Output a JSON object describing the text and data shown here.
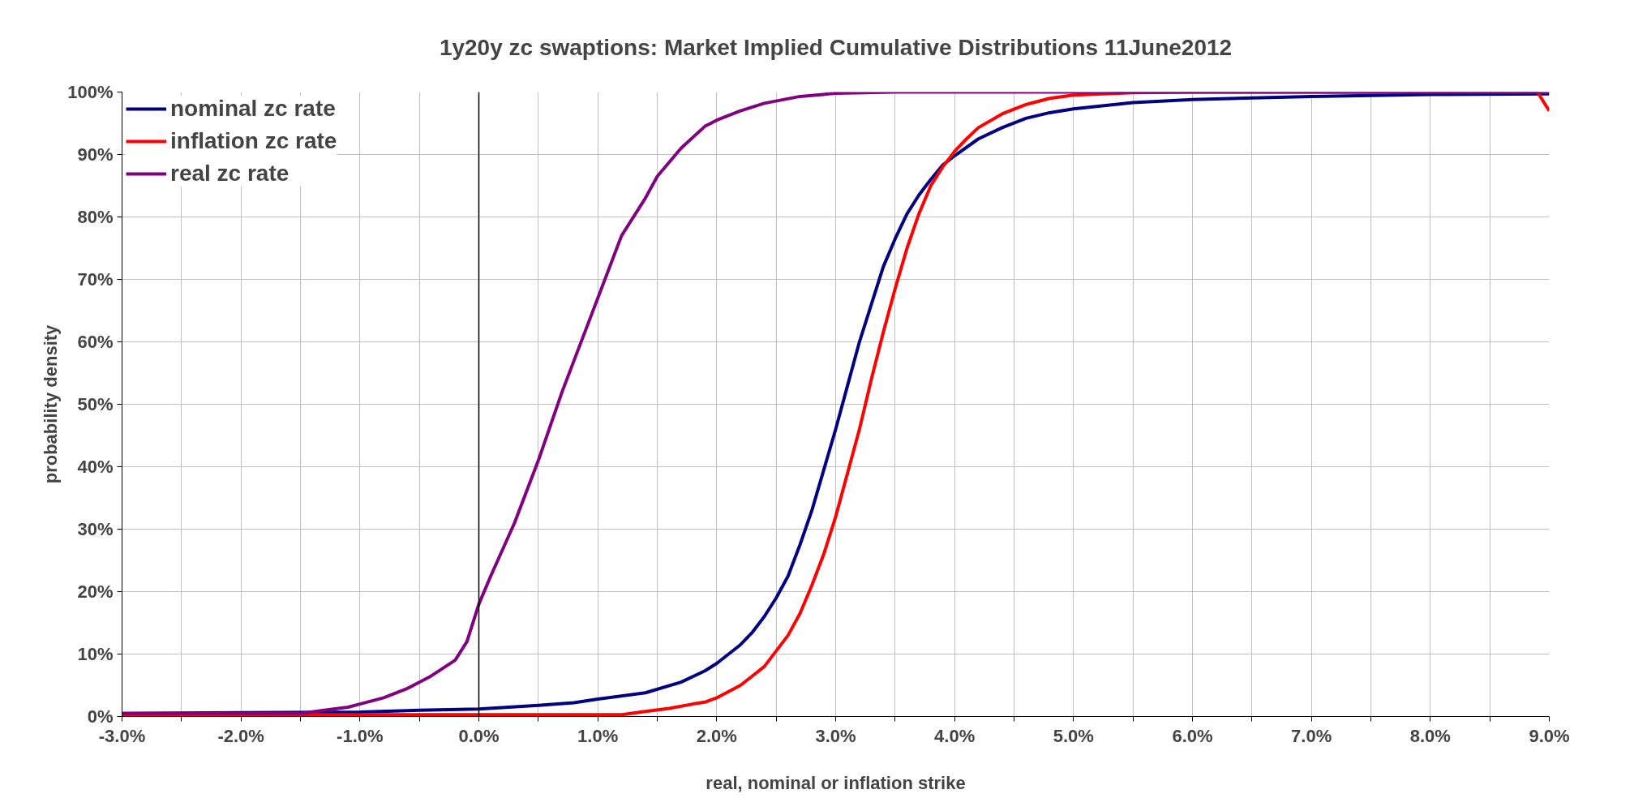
{
  "chart_data": {
    "type": "line",
    "title": "1y20y zc swaptions: Market Implied Cumulative Distributions 11June2012",
    "xlabel": "real, nominal or inflation strike",
    "ylabel": "probability density",
    "legend": "top left",
    "grid": true,
    "line_style": "solid",
    "xlim": [
      -3,
      9
    ],
    "ylim": [
      0,
      100
    ],
    "xticks": [
      {
        "value": -3,
        "label": "-3.0%"
      },
      {
        "value": -2.5,
        "label": null
      },
      {
        "value": -2,
        "label": "-2.0%"
      },
      {
        "value": -1.5,
        "label": null
      },
      {
        "value": -1,
        "label": "-1.0%"
      },
      {
        "value": -0.5,
        "label": null
      },
      {
        "value": 0,
        "label": "0.0%"
      },
      {
        "value": 0.5,
        "label": null
      },
      {
        "value": 1,
        "label": "1.0%"
      },
      {
        "value": 1.5,
        "label": null
      },
      {
        "value": 2,
        "label": "2.0%"
      },
      {
        "value": 2.5,
        "label": null
      },
      {
        "value": 3,
        "label": "3.0%"
      },
      {
        "value": 3.5,
        "label": null
      },
      {
        "value": 4,
        "label": "4.0%"
      },
      {
        "value": 4.5,
        "label": null
      },
      {
        "value": 5,
        "label": "5.0%"
      },
      {
        "value": 5.5,
        "label": null
      },
      {
        "value": 6,
        "label": "6.0%"
      },
      {
        "value": 6.5,
        "label": null
      },
      {
        "value": 7,
        "label": "7.0%"
      },
      {
        "value": 7.5,
        "label": null
      },
      {
        "value": 8,
        "label": "8.0%"
      },
      {
        "value": 8.5,
        "label": null
      },
      {
        "value": 9,
        "label": "9.0%"
      }
    ],
    "yticks": [
      {
        "value": 0,
        "label": "0%"
      },
      {
        "value": 10,
        "label": "10%"
      },
      {
        "value": 20,
        "label": "20%"
      },
      {
        "value": 30,
        "label": "30%"
      },
      {
        "value": 40,
        "label": "40%"
      },
      {
        "value": 50,
        "label": "50%"
      },
      {
        "value": 60,
        "label": "60%"
      },
      {
        "value": 70,
        "label": "70%"
      },
      {
        "value": 80,
        "label": "80%"
      },
      {
        "value": 90,
        "label": "90%"
      },
      {
        "value": 100,
        "label": "100%"
      }
    ],
    "ref_lines": [
      {
        "axis": "x",
        "value": 0,
        "color": "#000000"
      }
    ],
    "series": [
      {
        "name": "nominal zc rate",
        "color": "#000080",
        "x": [
          -3,
          -1,
          -0.5,
          0,
          0.5,
          0.8,
          1,
          1.4,
          1.7,
          1.9,
          2,
          2.2,
          2.3,
          2.4,
          2.5,
          2.6,
          2.7,
          2.8,
          2.9,
          3,
          3.1,
          3.2,
          3.3,
          3.4,
          3.5,
          3.6,
          3.7,
          3.8,
          3.9,
          4,
          4.2,
          4.4,
          4.6,
          4.8,
          5,
          5.5,
          6,
          7,
          8,
          9
        ],
        "values": [
          0.5,
          0.7,
          1,
          1.2,
          1.8,
          2.2,
          2.8,
          3.8,
          5.5,
          7.3,
          8.5,
          11.5,
          13.5,
          16,
          19,
          22.5,
          27.5,
          33,
          39.5,
          46,
          53,
          60,
          66,
          72,
          76.5,
          80.5,
          83.5,
          86,
          88.3,
          89.8,
          92.5,
          94.3,
          95.8,
          96.7,
          97.3,
          98.3,
          98.8,
          99.3,
          99.6,
          99.7
        ]
      },
      {
        "name": "inflation zc rate",
        "color": "#ff0000",
        "x": [
          -3,
          1.2,
          1.4,
          1.6,
          1.8,
          1.9,
          2,
          2.1,
          2.2,
          2.3,
          2.4,
          2.5,
          2.6,
          2.7,
          2.8,
          2.9,
          3,
          3.1,
          3.2,
          3.3,
          3.4,
          3.5,
          3.6,
          3.7,
          3.8,
          3.9,
          4,
          4.1,
          4.2,
          4.4,
          4.6,
          4.8,
          5,
          5.5,
          6,
          8.9,
          9
        ],
        "values": [
          0.3,
          0.3,
          0.8,
          1.3,
          2,
          2.3,
          3,
          4,
          5,
          6.5,
          8,
          10.5,
          13,
          16.5,
          21,
          26,
          32,
          39,
          46,
          54,
          61.5,
          68.5,
          75,
          80.5,
          85,
          88,
          90.5,
          92.5,
          94.3,
          96.5,
          98,
          99,
          99.5,
          99.9,
          100,
          100,
          97
        ]
      },
      {
        "name": "real zc rate",
        "color": "#800080",
        "x": [
          -3,
          -1.5,
          -1.3,
          -1.1,
          -1,
          -0.8,
          -0.6,
          -0.4,
          -0.2,
          -0.1,
          0,
          0.1,
          0.3,
          0.5,
          0.7,
          0.9,
          1,
          1.2,
          1.4,
          1.5,
          1.7,
          1.9,
          2,
          2.2,
          2.4,
          2.7,
          3,
          3.5,
          9
        ],
        "values": [
          0.5,
          0.5,
          1,
          1.5,
          2,
          3,
          4.5,
          6.5,
          9,
          12,
          18,
          22.5,
          31,
          41,
          52,
          62,
          67,
          77,
          83,
          86.5,
          91,
          94.5,
          95.5,
          97,
          98.2,
          99.3,
          99.8,
          100,
          100
        ]
      }
    ]
  }
}
